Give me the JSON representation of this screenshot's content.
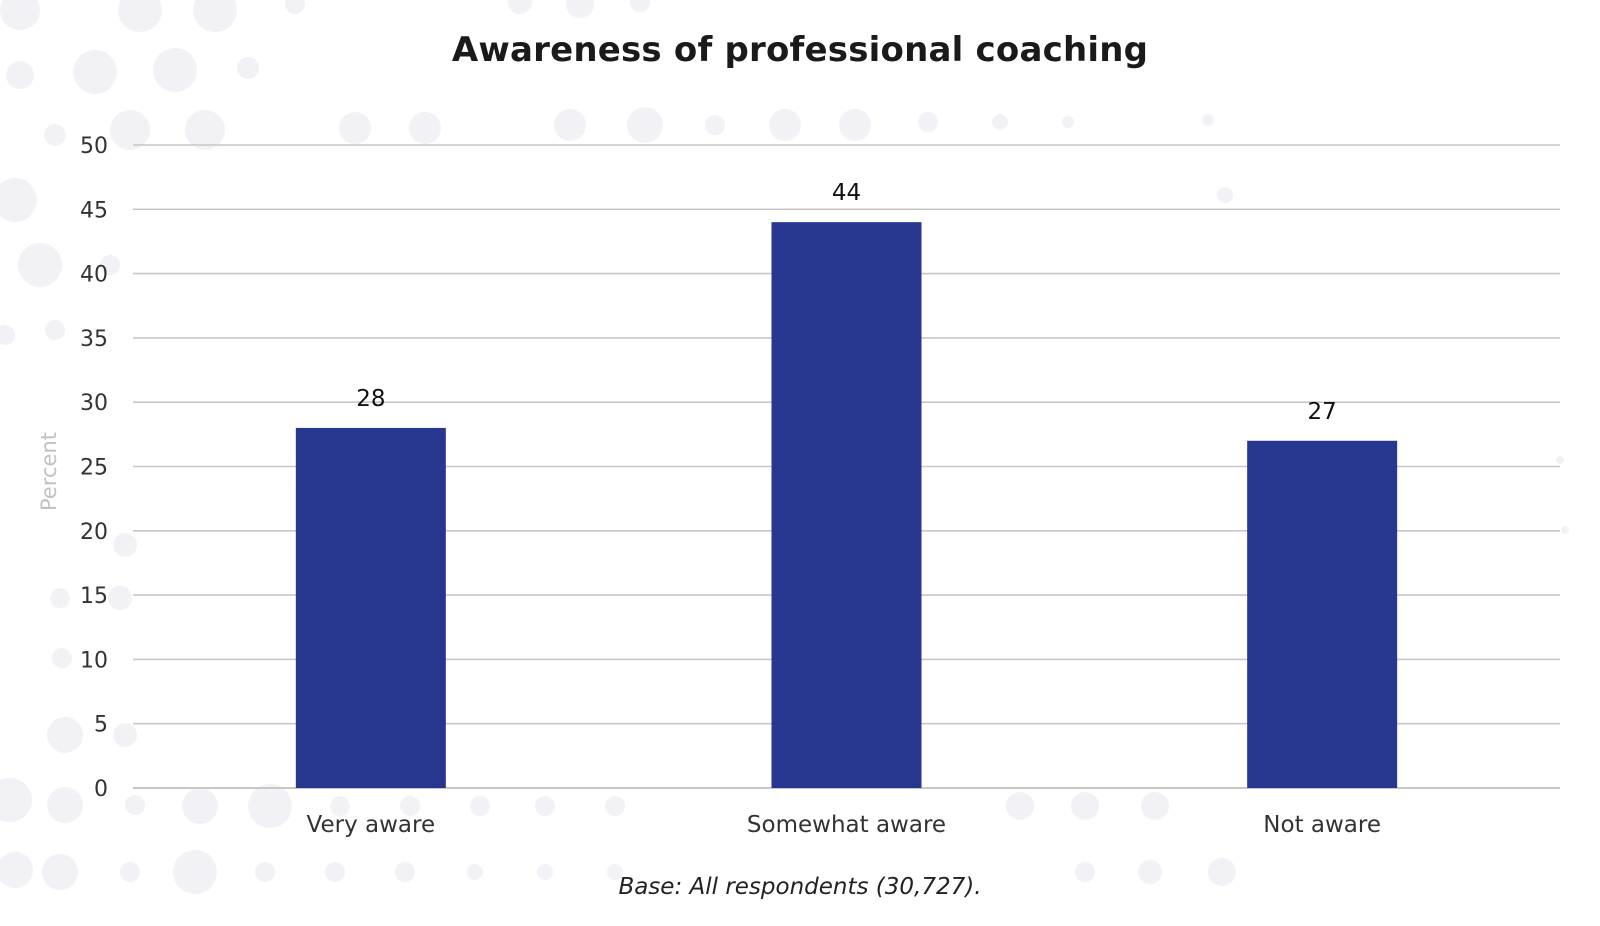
{
  "chart_data": {
    "type": "bar",
    "title": "Awareness of professional coaching",
    "ylabel": "Percent",
    "xlabel": "",
    "categories": [
      "Very aware",
      "Somewhat aware",
      "Not aware"
    ],
    "values": [
      28,
      44,
      27
    ],
    "data_labels": [
      "28",
      "44",
      "27"
    ],
    "ylim": [
      0,
      50
    ],
    "yticks": [
      0,
      5,
      10,
      15,
      20,
      25,
      30,
      35,
      40,
      45,
      50
    ],
    "grid": true,
    "bar_color": "#27368f",
    "gridline_color": "#c9c7c5",
    "note": "Base: All respondents (30,727)."
  }
}
